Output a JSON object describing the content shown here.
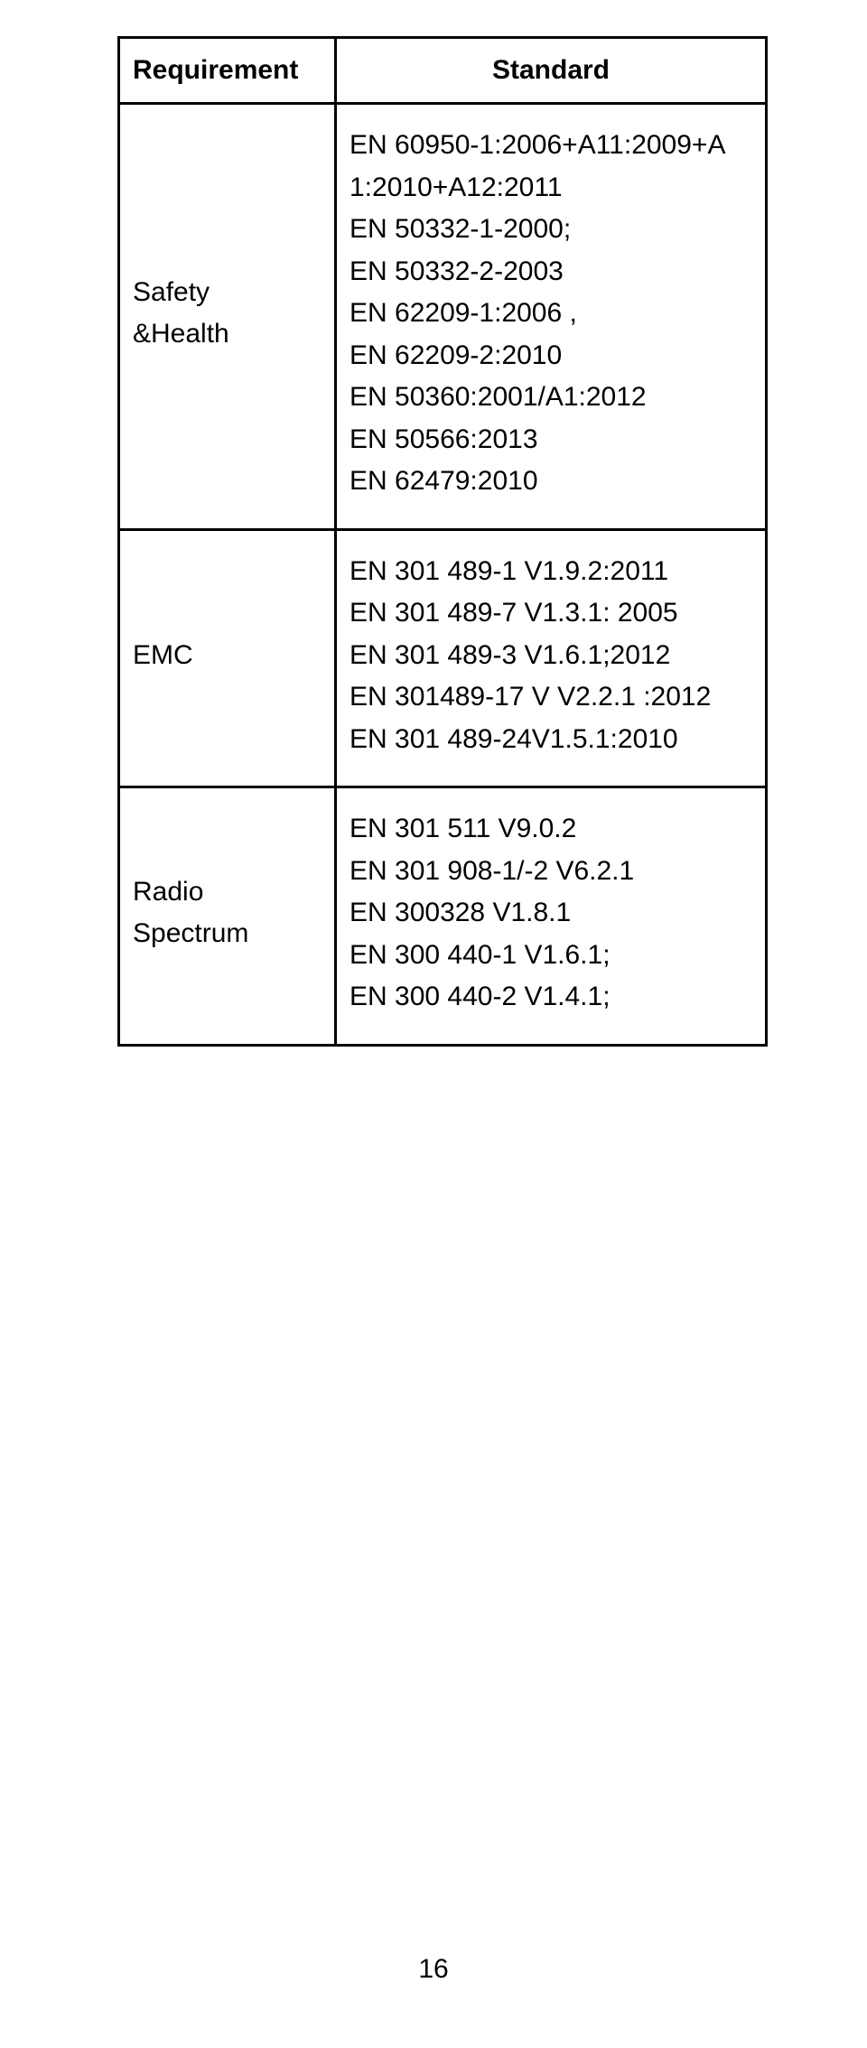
{
  "table": {
    "header": {
      "requirement": "Requirement",
      "standard": "Standard"
    },
    "rows": [
      {
        "req_lines": [
          "Safety",
          "&Health"
        ],
        "std_lines": [
          "EN 60950-1:2006+A11:2009+A",
          "1:2010+A12:2011",
          "EN 50332-1-2000;",
          "EN 50332-2-2003",
          "EN 62209-1:2006 ,",
          "EN 62209-2:2010",
          "EN 50360:2001/A1:2012",
          "EN 50566:2013",
          "EN 62479:2010"
        ]
      },
      {
        "req_lines": [
          "EMC"
        ],
        "std_lines": [
          "EN 301 489-1 V1.9.2:2011",
          "EN 301 489-7 V1.3.1: 2005",
          "EN 301 489-3 V1.6.1;2012",
          "EN 301489-17 V V2.2.1 :2012",
          "EN 301 489-24V1.5.1:2010"
        ]
      },
      {
        "req_lines": [
          "Radio",
          "Spectrum"
        ],
        "std_lines": [
          "EN 301 511 V9.0.2",
          "EN 301 908-1/-2 V6.2.1",
          "EN 300328 V1.8.1",
          "EN 300 440-1 V1.6.1;",
          "EN 300 440-2 V1.4.1;"
        ]
      }
    ]
  },
  "page_number": "16",
  "colors": {
    "text": "#000000",
    "border": "#000000",
    "background": "#ffffff"
  },
  "font": {
    "family": "Arial",
    "size_pt": 22,
    "weight_header": "bold",
    "weight_body": "normal"
  }
}
